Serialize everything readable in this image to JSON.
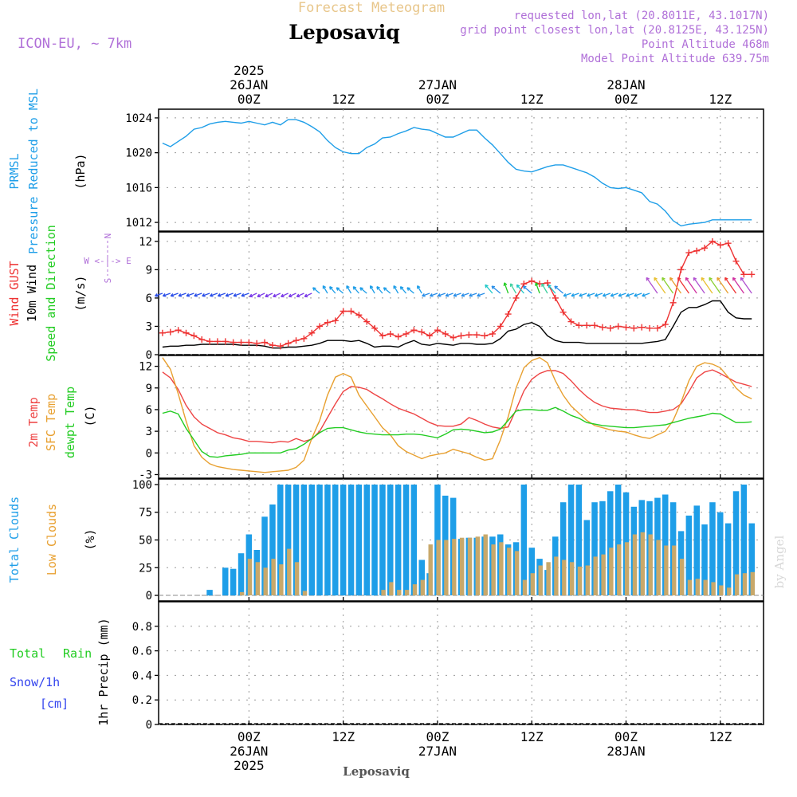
{
  "header": {
    "subtitle": "Forecast Meteogram",
    "location": "Leposaviq",
    "model": "ICON-EU, ~ 7km",
    "requested": "requested lon,lat (20.8011E, 43.1017N)",
    "gridpoint": "grid point closest lon,lat (20.8125E, 43.125N)",
    "point_alt": "Point Altitude 468m",
    "model_alt": "Model Point Altitude 639.75m"
  },
  "time_axis": {
    "top_labels": [
      {
        "t": 0,
        "lines": [
          "2025",
          "26JAN",
          "00Z"
        ]
      },
      {
        "t": 12,
        "lines": [
          "12Z"
        ]
      },
      {
        "t": 24,
        "lines": [
          "27JAN",
          "00Z"
        ]
      },
      {
        "t": 36,
        "lines": [
          "12Z"
        ]
      },
      {
        "t": 48,
        "lines": [
          "28JAN",
          "00Z"
        ]
      },
      {
        "t": 60,
        "lines": [
          "12Z"
        ]
      }
    ],
    "bottom_labels": [
      {
        "t": 0,
        "lines": [
          "00Z",
          "26JAN",
          "2025"
        ]
      },
      {
        "t": 12,
        "lines": [
          "12Z"
        ]
      },
      {
        "t": 24,
        "lines": [
          "00Z",
          "27JAN"
        ]
      },
      {
        "t": 36,
        "lines": [
          "12Z"
        ]
      },
      {
        "t": 48,
        "lines": [
          "00Z",
          "28JAN"
        ]
      },
      {
        "t": 60,
        "lines": [
          "12Z"
        ]
      }
    ],
    "footer": "Leposaviq",
    "credit": "by Angel"
  },
  "panel_labels": {
    "prmsl": [
      "PRMSL",
      "Pressure Reduced to MSL",
      "(hPa)"
    ],
    "wind": [
      "Wind GUST",
      "10m Wind",
      "Speed and Direction",
      "(m/s)"
    ],
    "compass": {
      "n": "N",
      "s": "S",
      "row": "W <-|-> E"
    },
    "temp": [
      "2m Temp",
      "SFC Temp",
      "dewpt Temp",
      "(C)"
    ],
    "clouds": [
      "Total Clouds",
      "Low Clouds",
      "(%)"
    ],
    "precip": [
      "1hr Precip (mm)",
      "Total",
      "Rain",
      "Snow/1h",
      "[cm]"
    ]
  },
  "chart_data": [
    {
      "type": "line",
      "title": "PRMSL Pressure Reduced to MSL",
      "ylabel": "(hPa)",
      "ylim": [
        1011,
        1025
      ],
      "yticks": [
        1012,
        1016,
        1020,
        1024
      ],
      "x_hours_from_26JAN00Z": [
        -11,
        -10,
        -9,
        -8,
        -7,
        -6,
        -5,
        -4,
        -3,
        -2,
        -1,
        0,
        1,
        2,
        3,
        4,
        5,
        6,
        7,
        8,
        9,
        10,
        11,
        12,
        13,
        14,
        15,
        16,
        17,
        18,
        19,
        20,
        21,
        22,
        23,
        24,
        25,
        26,
        27,
        28,
        29,
        30,
        31,
        32,
        33,
        34,
        35,
        36,
        37,
        38,
        39,
        40,
        41,
        42,
        43,
        44,
        45,
        46,
        47,
        48,
        49,
        50,
        51,
        52,
        53,
        54,
        55,
        56,
        57,
        58,
        59,
        60,
        61,
        62,
        63,
        64
      ],
      "series": [
        {
          "name": "PRMSL",
          "color": "#1e9ee8",
          "values": [
            1021.1,
            1020.7,
            1021.3,
            1021.9,
            1022.7,
            1022.9,
            1023.3,
            1023.5,
            1023.6,
            1023.5,
            1023.4,
            1023.6,
            1023.4,
            1023.2,
            1023.5,
            1023.2,
            1023.8,
            1023.8,
            1023.5,
            1023.0,
            1022.4,
            1021.4,
            1020.6,
            1020.1,
            1019.9,
            1019.9,
            1020.6,
            1021.0,
            1021.7,
            1021.8,
            1022.2,
            1022.5,
            1022.9,
            1022.7,
            1022.6,
            1022.2,
            1021.8,
            1021.8,
            1022.2,
            1022.6,
            1022.6,
            1021.7,
            1020.9,
            1019.9,
            1018.9,
            1018.1,
            1017.9,
            1017.8,
            1018.1,
            1018.4,
            1018.6,
            1018.6,
            1018.3,
            1018.0,
            1017.7,
            1017.2,
            1016.5,
            1016.0,
            1015.9,
            1016.0,
            1015.7,
            1015.4,
            1014.4,
            1014.1,
            1013.3,
            1012.2,
            1011.6,
            1011.8,
            1011.9,
            1012.0,
            1012.3,
            1012.3,
            1012.3,
            1012.3,
            1012.3,
            1012.3
          ]
        }
      ]
    },
    {
      "type": "line",
      "title": "Wind GUST / 10m Wind Speed and Direction",
      "ylabel": "(m/s)",
      "ylim": [
        0,
        13
      ],
      "yticks": [
        0,
        3,
        6,
        9,
        12
      ],
      "x_hours_from_26JAN00Z": [
        -11,
        -10,
        -9,
        -8,
        -7,
        -6,
        -5,
        -4,
        -3,
        -2,
        -1,
        0,
        1,
        2,
        3,
        4,
        5,
        6,
        7,
        8,
        9,
        10,
        11,
        12,
        13,
        14,
        15,
        16,
        17,
        18,
        19,
        20,
        21,
        22,
        23,
        24,
        25,
        26,
        27,
        28,
        29,
        30,
        31,
        32,
        33,
        34,
        35,
        36,
        37,
        38,
        39,
        40,
        41,
        42,
        43,
        44,
        45,
        46,
        47,
        48,
        49,
        50,
        51,
        52,
        53,
        54,
        55,
        56,
        57,
        58,
        59,
        60,
        61,
        62,
        63,
        64
      ],
      "series": [
        {
          "name": "Wind GUST",
          "color": "#ee3333",
          "marker": "+",
          "values": [
            2.3,
            2.4,
            2.6,
            2.3,
            2.0,
            1.6,
            1.4,
            1.4,
            1.4,
            1.3,
            1.3,
            1.3,
            1.2,
            1.3,
            1.0,
            0.9,
            1.2,
            1.5,
            1.7,
            2.3,
            3.0,
            3.4,
            3.6,
            4.6,
            4.6,
            4.2,
            3.5,
            2.8,
            2.0,
            2.2,
            1.9,
            2.2,
            2.6,
            2.4,
            2.0,
            2.6,
            2.2,
            1.8,
            2.0,
            2.1,
            2.1,
            2.0,
            2.2,
            3.0,
            4.3,
            6.0,
            7.5,
            7.8,
            7.5,
            7.6,
            6.0,
            4.5,
            3.5,
            3.1,
            3.1,
            3.1,
            2.9,
            2.8,
            3.0,
            2.9,
            2.8,
            2.9,
            2.8,
            2.8,
            3.2,
            5.5,
            9.0,
            10.8,
            11.0,
            11.3,
            12.0,
            11.6,
            11.8,
            9.9,
            8.5,
            8.5
          ]
        },
        {
          "name": "10m Wind",
          "color": "#000000",
          "values": [
            0.8,
            0.9,
            0.9,
            1.0,
            1.0,
            1.1,
            1.1,
            1.1,
            1.1,
            1.1,
            1.0,
            1.0,
            1.0,
            0.9,
            0.7,
            0.7,
            0.8,
            0.8,
            0.9,
            1.0,
            1.2,
            1.5,
            1.5,
            1.5,
            1.4,
            1.5,
            1.2,
            0.8,
            0.9,
            0.9,
            0.8,
            1.2,
            1.5,
            1.1,
            1.0,
            1.2,
            1.1,
            1.0,
            1.2,
            1.2,
            1.1,
            1.1,
            1.2,
            1.7,
            2.5,
            2.7,
            3.2,
            3.4,
            3.0,
            2.0,
            1.5,
            1.3,
            1.3,
            1.3,
            1.2,
            1.2,
            1.2,
            1.2,
            1.2,
            1.2,
            1.2,
            1.2,
            1.3,
            1.4,
            1.6,
            3.0,
            4.5,
            5.0,
            5.0,
            5.3,
            5.7,
            5.7,
            4.5,
            3.9,
            3.8,
            3.8
          ]
        }
      ],
      "wind_barbs": {
        "row_value": 6.5,
        "count": 76
      }
    },
    {
      "type": "line",
      "title": "2m Temp / SFC Temp / dewpt Temp",
      "ylabel": "(C)",
      "ylim": [
        -3.5,
        13.5
      ],
      "yticks": [
        -3,
        0,
        3,
        6,
        9,
        12
      ],
      "x_hours_from_26JAN00Z": [
        -11,
        -10,
        -9,
        -8,
        -7,
        -6,
        -5,
        -4,
        -3,
        -2,
        -1,
        0,
        1,
        2,
        3,
        4,
        5,
        6,
        7,
        8,
        9,
        10,
        11,
        12,
        13,
        14,
        15,
        16,
        17,
        18,
        19,
        20,
        21,
        22,
        23,
        24,
        25,
        26,
        27,
        28,
        29,
        30,
        31,
        32,
        33,
        34,
        35,
        36,
        37,
        38,
        39,
        40,
        41,
        42,
        43,
        44,
        45,
        46,
        47,
        48,
        49,
        50,
        51,
        52,
        53,
        54,
        55,
        56,
        57,
        58,
        59,
        60,
        61,
        62,
        63,
        64
      ],
      "series": [
        {
          "name": "2m Temp",
          "color": "#ee4444",
          "values": [
            11.2,
            10.4,
            8.8,
            6.6,
            5.0,
            4.0,
            3.4,
            2.8,
            2.5,
            2.1,
            1.9,
            1.6,
            1.6,
            1.5,
            1.4,
            1.6,
            1.5,
            2.0,
            1.6,
            1.9,
            3.0,
            4.9,
            6.8,
            8.5,
            9.2,
            9.1,
            8.8,
            8.1,
            7.5,
            6.8,
            6.2,
            5.8,
            5.4,
            4.8,
            4.2,
            3.8,
            3.7,
            3.7,
            4.0,
            4.9,
            4.5,
            4.0,
            3.6,
            3.4,
            3.6,
            6.0,
            8.6,
            10.2,
            11.0,
            11.4,
            11.4,
            11.0,
            10.0,
            8.8,
            7.8,
            7.0,
            6.5,
            6.2,
            6.1,
            6.0,
            6.0,
            5.8,
            5.6,
            5.6,
            5.8,
            6.0,
            6.8,
            8.5,
            10.4,
            11.2,
            11.5,
            11.0,
            10.4,
            9.8,
            9.5,
            9.2
          ]
        },
        {
          "name": "SFC Temp",
          "color": "#e8a030",
          "values": [
            13.2,
            11.6,
            8.2,
            4.4,
            1.0,
            -0.6,
            -1.5,
            -1.9,
            -2.1,
            -2.3,
            -2.4,
            -2.5,
            -2.6,
            -2.7,
            -2.6,
            -2.5,
            -2.4,
            -2.0,
            -1.0,
            2.0,
            4.5,
            8.0,
            10.5,
            11.0,
            10.5,
            8.0,
            6.5,
            5.0,
            3.5,
            2.5,
            1.0,
            0.2,
            -0.3,
            -0.8,
            -0.4,
            -0.2,
            0.0,
            0.5,
            0.2,
            -0.1,
            -0.6,
            -1.0,
            -0.8,
            1.8,
            5.0,
            9.0,
            11.8,
            12.8,
            13.2,
            12.5,
            10.0,
            8.0,
            6.5,
            5.5,
            4.5,
            3.8,
            3.5,
            3.2,
            3.0,
            2.9,
            2.5,
            2.2,
            2.0,
            2.5,
            3.0,
            4.5,
            7.0,
            10.0,
            12.0,
            12.5,
            12.3,
            11.8,
            10.5,
            9.0,
            8.0,
            7.5
          ]
        },
        {
          "name": "dewpt Temp",
          "color": "#22cc22",
          "values": [
            5.5,
            5.8,
            5.4,
            3.4,
            1.8,
            0.2,
            -0.5,
            -0.6,
            -0.4,
            -0.3,
            -0.2,
            0.0,
            0.0,
            0.0,
            0.0,
            0.0,
            0.4,
            0.6,
            1.2,
            2.0,
            2.8,
            3.4,
            3.5,
            3.5,
            3.2,
            2.9,
            2.7,
            2.6,
            2.5,
            2.5,
            2.5,
            2.6,
            2.6,
            2.5,
            2.3,
            2.1,
            2.6,
            3.2,
            3.3,
            3.2,
            3.0,
            2.8,
            2.9,
            3.3,
            4.5,
            5.8,
            6.0,
            6.0,
            5.9,
            5.9,
            6.3,
            5.8,
            5.2,
            4.8,
            4.2,
            4.0,
            3.8,
            3.7,
            3.6,
            3.5,
            3.5,
            3.6,
            3.7,
            3.8,
            3.9,
            4.2,
            4.5,
            4.8,
            5.0,
            5.2,
            5.5,
            5.4,
            4.8,
            4.2,
            4.2,
            4.3
          ]
        }
      ]
    },
    {
      "type": "bar",
      "title": "Total Clouds / Low Clouds",
      "ylabel": "(%)",
      "ylim": [
        -5,
        105
      ],
      "yticks": [
        0,
        25,
        50,
        75,
        100
      ],
      "x_hours_from_26JAN00Z": [
        -11,
        -10,
        -9,
        -8,
        -7,
        -6,
        -5,
        -4,
        -3,
        -2,
        -1,
        0,
        1,
        2,
        3,
        4,
        5,
        6,
        7,
        8,
        9,
        10,
        11,
        12,
        13,
        14,
        15,
        16,
        17,
        18,
        19,
        20,
        21,
        22,
        23,
        24,
        25,
        26,
        27,
        28,
        29,
        30,
        31,
        32,
        33,
        34,
        35,
        36,
        37,
        38,
        39,
        40,
        41,
        42,
        43,
        44,
        45,
        46,
        47,
        48,
        49,
        50,
        51,
        52,
        53,
        54,
        55,
        56,
        57,
        58,
        59,
        60,
        61,
        62,
        63,
        64
      ],
      "series": [
        {
          "name": "Total Clouds",
          "color": "#1e9ee8",
          "values": [
            0,
            0,
            0,
            0,
            0,
            0,
            5,
            0,
            25,
            24,
            38,
            55,
            41,
            71,
            82,
            100,
            100,
            100,
            100,
            100,
            100,
            100,
            100,
            100,
            100,
            100,
            100,
            100,
            100,
            100,
            100,
            100,
            100,
            32,
            20,
            100,
            90,
            88,
            51,
            52,
            52,
            53,
            53,
            55,
            46,
            48,
            100,
            43,
            33,
            23,
            53,
            84,
            100,
            100,
            68,
            84,
            85,
            94,
            100,
            93,
            80,
            86,
            85,
            88,
            91,
            84,
            58,
            72,
            81,
            64,
            84,
            75,
            65,
            94,
            100,
            65
          ]
        },
        {
          "name": "Low Clouds",
          "color": "#c8a86a",
          "values": [
            0,
            0,
            0,
            0,
            0,
            0,
            0,
            0,
            0,
            0,
            3,
            33,
            30,
            25,
            33,
            28,
            42,
            30,
            4,
            0,
            0,
            0,
            0,
            0,
            0,
            0,
            0,
            0,
            5,
            12,
            5,
            5,
            10,
            14,
            46,
            50,
            50,
            51,
            52,
            52,
            53,
            55,
            46,
            48,
            43,
            40,
            14,
            20,
            27,
            30,
            35,
            32,
            30,
            26,
            27,
            35,
            37,
            43,
            46,
            48,
            55,
            57,
            55,
            50,
            45,
            45,
            33,
            14,
            15,
            14,
            12,
            9,
            7,
            19,
            20,
            21
          ]
        }
      ]
    },
    {
      "type": "bar",
      "title": "Total Rain / Snow/1h [cm]",
      "ylabel": "1hr Precip (mm)",
      "ylim": [
        0,
        1.0
      ],
      "yticks": [
        0,
        0.2,
        0.4,
        0.6,
        0.8
      ],
      "ytick_labels": [
        "0",
        "0.2",
        "0.4",
        "0.6",
        "0.8"
      ],
      "series": [
        {
          "name": "Total Rain",
          "color": "#22cc22",
          "values": []
        },
        {
          "name": "Snow/1h",
          "color": "#3344ee",
          "values": []
        }
      ]
    }
  ]
}
